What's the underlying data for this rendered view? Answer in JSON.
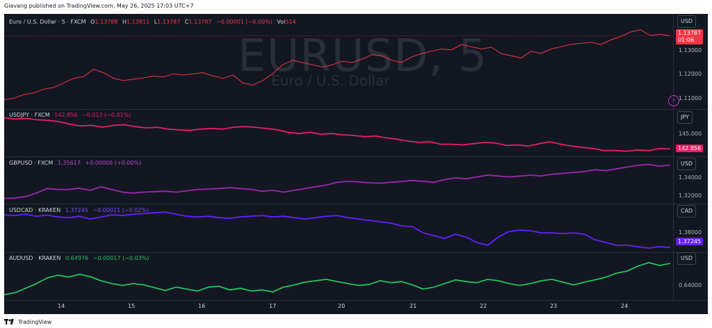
{
  "header": {
    "text": "Giavang published on TradingView.com, May 26, 2025 17:03 UTC+7"
  },
  "watermark": {
    "symbol": "EURUSD, 5",
    "description": "Euro / U.S. Dollar"
  },
  "panes": [
    {
      "id": "eurusd",
      "legend": {
        "name": "Euro / U.S. Dollar · 5 · FXCM",
        "open_label": "O",
        "open": "1.13788",
        "high_label": "H",
        "high": "1.13811",
        "low_label": "L",
        "low": "1.13787",
        "close_label": "C",
        "close": "1.13787",
        "change": "−0.00001 (−0.00%)",
        "vol_label": "Vol",
        "vol": "514"
      },
      "currency": "USD",
      "last_price": "1.13787",
      "countdown": "01:06",
      "ticks": [
        "1.13000",
        "1.12000",
        "1.11000"
      ],
      "color": "#f23645",
      "y_range": [
        1.1075,
        1.142
      ],
      "series": [
        1.1095,
        1.1102,
        1.1118,
        1.1125,
        1.1142,
        1.115,
        1.117,
        1.119,
        1.1198,
        1.123,
        1.1215,
        1.119,
        1.118,
        1.1186,
        1.1192,
        1.12,
        1.1196,
        1.121,
        1.1205,
        1.121,
        1.1215,
        1.12,
        1.119,
        1.1205,
        1.117,
        1.116,
        1.118,
        1.121,
        1.125,
        1.127,
        1.126,
        1.125,
        1.124,
        1.125,
        1.1265,
        1.126,
        1.1275,
        1.1295,
        1.129,
        1.127,
        1.126,
        1.1285,
        1.13,
        1.131,
        1.132,
        1.1316,
        1.134,
        1.133,
        1.132,
        1.1328,
        1.13,
        1.129,
        1.128,
        1.131,
        1.13,
        1.132,
        1.133,
        1.134,
        1.1345,
        1.135,
        1.134,
        1.136,
        1.1375,
        1.1395,
        1.1405,
        1.138,
        1.1385,
        1.13787
      ]
    },
    {
      "id": "usdjpy",
      "legend": {
        "name": "USDJPY · FXCM",
        "value": "142.856",
        "change": "−0.013 (−0.01%)"
      },
      "currency": "JPY",
      "last_price": "142.856",
      "ticks": [
        "145.000"
      ],
      "color": "#e91e63",
      "y_range": [
        141.9,
        148.3
      ],
      "series": [
        147.8,
        147.6,
        147.7,
        147.5,
        147.4,
        147.2,
        146.8,
        146.5,
        146.6,
        146.3,
        146.6,
        146.7,
        146.4,
        146.2,
        146.3,
        146.0,
        145.9,
        145.8,
        146.0,
        146.1,
        146.0,
        146.3,
        146.4,
        146.3,
        146.1,
        145.9,
        145.5,
        145.3,
        145.5,
        145.2,
        145.3,
        145.1,
        145.0,
        144.8,
        144.9,
        144.6,
        144.4,
        144.1,
        143.9,
        144.0,
        143.6,
        143.6,
        143.5,
        143.7,
        143.9,
        143.8,
        143.4,
        143.5,
        143.3,
        143.7,
        144.0,
        143.6,
        143.3,
        143.1,
        142.9,
        142.6,
        142.6,
        142.5,
        142.7,
        142.6,
        142.9,
        142.856
      ]
    },
    {
      "id": "gbpusd",
      "legend": {
        "name": "GBPUSD · FXCM",
        "value": "1.35617",
        "change": "+0.00006 (+0.00%)"
      },
      "currency": "USD",
      "ticks": [
        "1.34000",
        "1.32000"
      ],
      "color": "#9c27b0",
      "y_range": [
        1.3155,
        1.359
      ],
      "series": [
        1.319,
        1.3195,
        1.321,
        1.325,
        1.33,
        1.329,
        1.329,
        1.3305,
        1.328,
        1.332,
        1.329,
        1.326,
        1.325,
        1.326,
        1.3265,
        1.327,
        1.326,
        1.3275,
        1.329,
        1.3295,
        1.33,
        1.331,
        1.33,
        1.329,
        1.327,
        1.328,
        1.326,
        1.328,
        1.33,
        1.332,
        1.334,
        1.337,
        1.338,
        1.3375,
        1.3365,
        1.336,
        1.337,
        1.338,
        1.339,
        1.338,
        1.337,
        1.34,
        1.342,
        1.341,
        1.343,
        1.345,
        1.344,
        1.343,
        1.344,
        1.345,
        1.344,
        1.346,
        1.347,
        1.348,
        1.349,
        1.351,
        1.35,
        1.352,
        1.354,
        1.356,
        1.357,
        1.355,
        1.35617
      ]
    },
    {
      "id": "usdcad",
      "legend": {
        "name": "USDCAD · KRAKEN",
        "value": "1.37245",
        "change": "−0.00021 (−0.02%)"
      },
      "currency": "CAD",
      "last_price": "1.37245",
      "ticks": [
        "1.38000"
      ],
      "color": "#651fff",
      "y_range": [
        1.3705,
        1.3996
      ],
      "series": [
        1.396,
        1.3955,
        1.3965,
        1.395,
        1.3958,
        1.3945,
        1.394,
        1.395,
        1.393,
        1.3945,
        1.396,
        1.3955,
        1.3965,
        1.397,
        1.3975,
        1.398,
        1.3965,
        1.395,
        1.3945,
        1.395,
        1.394,
        1.3935,
        1.3945,
        1.395,
        1.3955,
        1.3945,
        1.395,
        1.394,
        1.393,
        1.394,
        1.395,
        1.3955,
        1.394,
        1.393,
        1.392,
        1.391,
        1.39,
        1.388,
        1.3875,
        1.383,
        1.381,
        1.379,
        1.382,
        1.38,
        1.376,
        1.374,
        1.38,
        1.384,
        1.385,
        1.3845,
        1.383,
        1.383,
        1.3825,
        1.383,
        1.382,
        1.378,
        1.376,
        1.374,
        1.374,
        1.373,
        1.372,
        1.373,
        1.37245
      ]
    },
    {
      "id": "audusd",
      "legend": {
        "name": "AUDUSD · KRAKEN",
        "value": "0.64976",
        "change": "−0.00017 (−0.03%)"
      },
      "currency": "USD",
      "ticks": [
        "0.64000"
      ],
      "color": "#22c55e",
      "y_range": [
        0.6375,
        0.6515
      ],
      "series": [
        0.6385,
        0.6392,
        0.6408,
        0.6425,
        0.6445,
        0.6455,
        0.6448,
        0.6458,
        0.645,
        0.6435,
        0.6425,
        0.6418,
        0.6425,
        0.642,
        0.641,
        0.64,
        0.6412,
        0.6405,
        0.6398,
        0.6412,
        0.6415,
        0.6402,
        0.6408,
        0.6398,
        0.6402,
        0.6395,
        0.6412,
        0.642,
        0.643,
        0.6435,
        0.644,
        0.6432,
        0.6425,
        0.6418,
        0.6422,
        0.6435,
        0.6428,
        0.6432,
        0.642,
        0.6405,
        0.6412,
        0.6425,
        0.6438,
        0.6432,
        0.6428,
        0.644,
        0.6435,
        0.6425,
        0.6418,
        0.6425,
        0.6435,
        0.644,
        0.643,
        0.642,
        0.643,
        0.6438,
        0.6448,
        0.6462,
        0.647,
        0.6488,
        0.65,
        0.649,
        0.64976
      ]
    }
  ],
  "time_axis": {
    "labels": [
      "14",
      "15",
      "16",
      "17",
      "20",
      "21",
      "22",
      "23",
      "24"
    ]
  },
  "footer": {
    "brand": "TradingView"
  }
}
